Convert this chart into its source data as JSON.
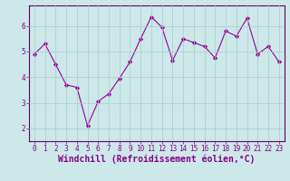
{
  "x": [
    0,
    1,
    2,
    3,
    4,
    5,
    6,
    7,
    8,
    9,
    10,
    11,
    12,
    13,
    14,
    15,
    16,
    17,
    18,
    19,
    20,
    21,
    22,
    23
  ],
  "y": [
    4.9,
    5.3,
    4.5,
    3.7,
    3.6,
    2.1,
    3.05,
    3.35,
    3.95,
    4.6,
    5.5,
    6.35,
    5.95,
    4.65,
    5.5,
    5.35,
    5.2,
    4.75,
    5.8,
    5.6,
    6.3,
    4.9,
    5.2,
    4.6
  ],
  "line_color": "#990099",
  "marker": "D",
  "marker_size": 2.2,
  "background_color": "#cce8e8",
  "grid_color": "#aacccc",
  "xlabel": "Windchill (Refroidissement éolien,°C)",
  "ylim": [
    1.5,
    6.8
  ],
  "xlim": [
    -0.5,
    23.5
  ],
  "yticks": [
    2,
    3,
    4,
    5,
    6
  ],
  "xticks": [
    0,
    1,
    2,
    3,
    4,
    5,
    6,
    7,
    8,
    9,
    10,
    11,
    12,
    13,
    14,
    15,
    16,
    17,
    18,
    19,
    20,
    21,
    22,
    23
  ],
  "tick_color": "#880088",
  "tick_fontsize": 5.5,
  "xlabel_fontsize": 7,
  "spine_color": "#660066",
  "linewidth": 0.8
}
